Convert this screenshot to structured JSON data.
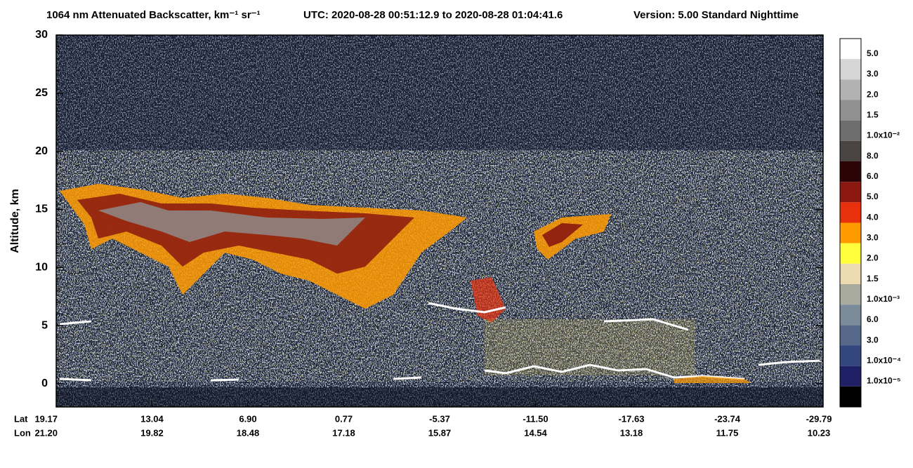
{
  "chart_data": {
    "type": "heatmap",
    "title": "1064 nm Attenuated Backscatter, km⁻¹ sr⁻¹",
    "time_range": "UTC:  2020-08-28 00:51:12.9  to  2020-08-28 01:04:41.6",
    "version": "Version: 5.00  Standard  Nighttime",
    "y_label": "Altitude, km",
    "ylim": [
      -2,
      30
    ],
    "yticks": [
      0,
      5,
      10,
      15,
      20,
      25,
      30
    ],
    "lat_label": "Lat",
    "lon_label": "Lon",
    "lat": [
      "19.17",
      "13.04",
      "6.90",
      "0.77",
      "-5.37",
      "-11.50",
      "-17.63",
      "-23.74",
      "-29.79"
    ],
    "lon": [
      "21.20",
      "19.82",
      "18.48",
      "17.18",
      "15.87",
      "14.54",
      "13.18",
      "11.75",
      "10.23"
    ],
    "colorbar": {
      "labels": [
        "5.0",
        "3.0",
        "2.0",
        "1.5",
        "1.0x10⁻²",
        "8.0",
        "6.0",
        "5.0",
        "4.0",
        "3.0",
        "2.0",
        "1.5",
        "1.0x10⁻³",
        "6.0",
        "3.0",
        "1.0x10⁻⁴",
        "1.0x10⁻⁵"
      ],
      "colors": [
        "#ffffff",
        "#d6d6d6",
        "#b2b2b2",
        "#909090",
        "#6e6e6e",
        "#4a4443",
        "#2b0505",
        "#8a1810",
        "#e8300c",
        "#ff9a00",
        "#ffff3c",
        "#ecdbb0",
        "#a9ab9e",
        "#7b8b9a",
        "#56698a",
        "#33467e",
        "#1f1f66",
        "#000000"
      ]
    }
  }
}
